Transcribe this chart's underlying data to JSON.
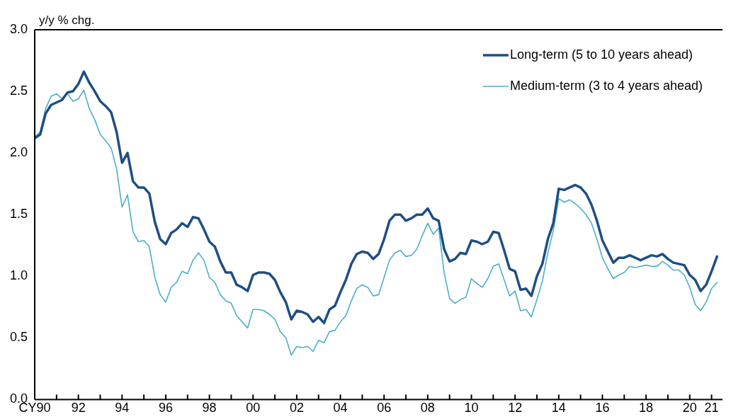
{
  "chart_data": {
    "type": "line",
    "ylabel": "y/y % chg.",
    "xlim": [
      1990,
      2021.5
    ],
    "xticks": [
      {
        "value": 1990,
        "label": "CY90"
      },
      {
        "value": 1991,
        "label": null
      },
      {
        "value": 1992,
        "label": "92"
      },
      {
        "value": 1993,
        "label": null
      },
      {
        "value": 1994,
        "label": "94"
      },
      {
        "value": 1995,
        "label": null
      },
      {
        "value": 1996,
        "label": "96"
      },
      {
        "value": 1997,
        "label": null
      },
      {
        "value": 1998,
        "label": "98"
      },
      {
        "value": 1999,
        "label": null
      },
      {
        "value": 2000,
        "label": "00"
      },
      {
        "value": 2001,
        "label": null
      },
      {
        "value": 2002,
        "label": "02"
      },
      {
        "value": 2003,
        "label": null
      },
      {
        "value": 2004,
        "label": "04"
      },
      {
        "value": 2005,
        "label": null
      },
      {
        "value": 2006,
        "label": "06"
      },
      {
        "value": 2007,
        "label": null
      },
      {
        "value": 2008,
        "label": "08"
      },
      {
        "value": 2009,
        "label": null
      },
      {
        "value": 2010,
        "label": "10"
      },
      {
        "value": 2011,
        "label": null
      },
      {
        "value": 2012,
        "label": "12"
      },
      {
        "value": 2013,
        "label": null
      },
      {
        "value": 2014,
        "label": "14"
      },
      {
        "value": 2015,
        "label": null
      },
      {
        "value": 2016,
        "label": "16"
      },
      {
        "value": 2017,
        "label": null
      },
      {
        "value": 2018,
        "label": "18"
      },
      {
        "value": 2019,
        "label": null
      },
      {
        "value": 2020,
        "label": "20"
      },
      {
        "value": 2021,
        "label": "21"
      }
    ],
    "ylim": [
      0,
      3
    ],
    "yticks": [
      {
        "value": 0,
        "label": "0.0"
      },
      {
        "value": 0.5,
        "label": "0.5"
      },
      {
        "value": 1,
        "label": "1.0"
      },
      {
        "value": 1.5,
        "label": "1.5"
      },
      {
        "value": 2,
        "label": "2.0"
      },
      {
        "value": 2.5,
        "label": "2.5"
      },
      {
        "value": 3,
        "label": "3.0"
      }
    ],
    "x": [
      1990,
      1990.25,
      1990.5,
      1990.75,
      1991,
      1991.25,
      1991.5,
      1991.75,
      1992,
      1992.25,
      1992.5,
      1992.75,
      1993,
      1993.25,
      1993.5,
      1993.75,
      1994,
      1994.25,
      1994.5,
      1994.75,
      1995,
      1995.25,
      1995.5,
      1995.75,
      1996,
      1996.25,
      1996.5,
      1996.75,
      1997,
      1997.25,
      1997.5,
      1997.75,
      1998,
      1998.25,
      1998.5,
      1998.75,
      1999,
      1999.25,
      1999.5,
      1999.75,
      2000,
      2000.25,
      2000.5,
      2000.75,
      2001,
      2001.25,
      2001.5,
      2001.75,
      2002,
      2002.25,
      2002.5,
      2002.75,
      2003,
      2003.25,
      2003.5,
      2003.75,
      2004,
      2004.25,
      2004.5,
      2004.75,
      2005,
      2005.25,
      2005.5,
      2005.75,
      2006,
      2006.25,
      2006.5,
      2006.75,
      2007,
      2007.25,
      2007.5,
      2007.75,
      2008,
      2008.25,
      2008.5,
      2008.75,
      2009,
      2009.25,
      2009.5,
      2009.75,
      2010,
      2010.25,
      2010.5,
      2010.75,
      2011,
      2011.25,
      2011.5,
      2011.75,
      2012,
      2012.25,
      2012.5,
      2012.75,
      2013,
      2013.25,
      2013.5,
      2013.75,
      2014,
      2014.25,
      2014.5,
      2014.75,
      2015,
      2015.25,
      2015.5,
      2015.75,
      2016,
      2016.25,
      2016.5,
      2016.75,
      2017,
      2017.25,
      2017.5,
      2017.75,
      2018,
      2018.25,
      2018.5,
      2018.75,
      2019,
      2019.25,
      2019.5,
      2019.75,
      2020,
      2020.25,
      2020.5,
      2020.75,
      2021,
      2021.25
    ],
    "series": [
      {
        "name": "Long-term (5 to 10 years ahead)",
        "color": "#1f4e85",
        "values": [
          2.12,
          2.15,
          2.32,
          2.39,
          2.41,
          2.43,
          2.49,
          2.5,
          2.56,
          2.66,
          2.57,
          2.5,
          2.42,
          2.38,
          2.33,
          2.17,
          1.92,
          2.0,
          1.77,
          1.72,
          1.72,
          1.67,
          1.44,
          1.3,
          1.26,
          1.35,
          1.38,
          1.43,
          1.4,
          1.48,
          1.47,
          1.38,
          1.28,
          1.24,
          1.12,
          1.03,
          1.03,
          0.93,
          0.91,
          0.88,
          1.01,
          1.03,
          1.03,
          1.02,
          0.97,
          0.87,
          0.79,
          0.65,
          0.72,
          0.71,
          0.69,
          0.63,
          0.67,
          0.62,
          0.73,
          0.76,
          0.87,
          0.97,
          1.1,
          1.18,
          1.2,
          1.19,
          1.14,
          1.18,
          1.3,
          1.45,
          1.5,
          1.5,
          1.45,
          1.47,
          1.5,
          1.5,
          1.55,
          1.47,
          1.45,
          1.22,
          1.12,
          1.14,
          1.19,
          1.18,
          1.29,
          1.28,
          1.26,
          1.28,
          1.36,
          1.35,
          1.21,
          1.06,
          1.04,
          0.89,
          0.9,
          0.84,
          1.0,
          1.1,
          1.3,
          1.43,
          1.71,
          1.7,
          1.72,
          1.74,
          1.72,
          1.67,
          1.58,
          1.45,
          1.29,
          1.2,
          1.11,
          1.15,
          1.15,
          1.17,
          1.15,
          1.13,
          1.15,
          1.17,
          1.16,
          1.18,
          1.14,
          1.11,
          1.1,
          1.09,
          1.01,
          0.97,
          0.88,
          0.93,
          1.04,
          1.16
        ]
      },
      {
        "name": "Medium-term (3 to 4 years ahead)",
        "color": "#4bafc8",
        "values": [
          2.13,
          2.17,
          2.36,
          2.46,
          2.48,
          2.44,
          2.48,
          2.42,
          2.44,
          2.51,
          2.36,
          2.27,
          2.15,
          2.1,
          2.04,
          1.87,
          1.56,
          1.66,
          1.36,
          1.28,
          1.29,
          1.24,
          0.99,
          0.85,
          0.79,
          0.91,
          0.95,
          1.04,
          1.02,
          1.13,
          1.19,
          1.13,
          0.99,
          0.95,
          0.85,
          0.8,
          0.78,
          0.68,
          0.63,
          0.58,
          0.73,
          0.73,
          0.72,
          0.69,
          0.65,
          0.55,
          0.5,
          0.36,
          0.43,
          0.42,
          0.43,
          0.39,
          0.48,
          0.46,
          0.55,
          0.56,
          0.63,
          0.68,
          0.8,
          0.9,
          0.93,
          0.91,
          0.84,
          0.85,
          0.99,
          1.13,
          1.19,
          1.21,
          1.16,
          1.17,
          1.22,
          1.33,
          1.43,
          1.34,
          1.39,
          1.03,
          0.82,
          0.78,
          0.81,
          0.83,
          0.98,
          0.94,
          0.91,
          0.98,
          1.08,
          1.1,
          0.97,
          0.84,
          0.88,
          0.72,
          0.73,
          0.67,
          0.81,
          0.96,
          1.19,
          1.37,
          1.63,
          1.6,
          1.62,
          1.59,
          1.55,
          1.5,
          1.43,
          1.3,
          1.15,
          1.06,
          0.98,
          1.01,
          1.03,
          1.08,
          1.07,
          1.08,
          1.09,
          1.08,
          1.08,
          1.12,
          1.09,
          1.05,
          1.05,
          1.01,
          0.91,
          0.77,
          0.72,
          0.79,
          0.9,
          0.95
        ]
      }
    ],
    "legend": "top right",
    "grid": false,
    "marker": "none",
    "line_style": "solid"
  }
}
